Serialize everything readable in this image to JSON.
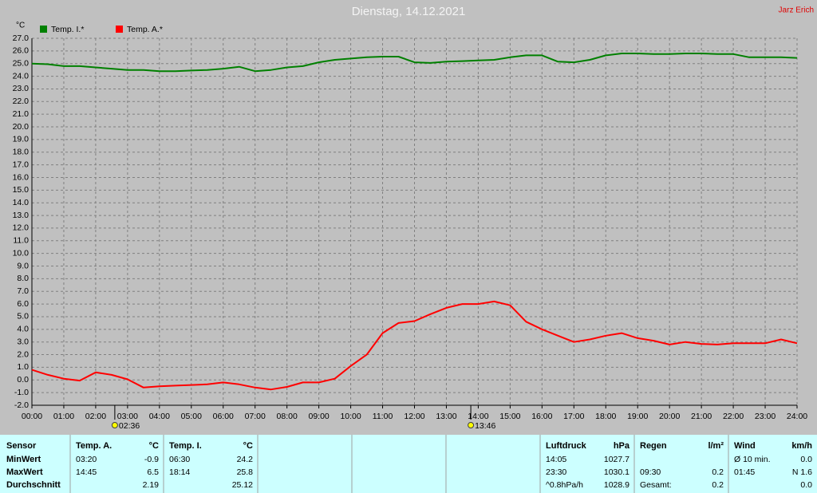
{
  "chart_data": {
    "type": "line",
    "title": "Dienstag, 14.12.2021",
    "author": "Jarz Erich",
    "y_unit": "°C",
    "x": [
      0,
      0.5,
      1,
      1.5,
      2,
      2.5,
      3,
      3.5,
      4,
      4.5,
      5,
      5.5,
      6,
      6.5,
      7,
      7.5,
      8,
      8.5,
      9,
      9.5,
      10,
      10.5,
      11,
      11.5,
      12,
      12.5,
      13,
      13.5,
      14,
      14.5,
      15,
      15.5,
      16,
      16.5,
      17,
      17.5,
      18,
      18.5,
      19,
      19.5,
      20,
      20.5,
      21,
      21.5,
      22,
      22.5,
      23,
      23.5,
      24
    ],
    "series": [
      {
        "name": "Temp. I.*",
        "color": "#008000",
        "values": [
          25.0,
          24.95,
          24.8,
          24.8,
          24.7,
          24.6,
          24.5,
          24.5,
          24.4,
          24.4,
          24.45,
          24.5,
          24.6,
          24.75,
          24.4,
          24.5,
          24.7,
          24.8,
          25.1,
          25.3,
          25.4,
          25.5,
          25.55,
          25.55,
          25.1,
          25.05,
          25.15,
          25.2,
          25.25,
          25.3,
          25.5,
          25.65,
          25.65,
          25.15,
          25.1,
          25.3,
          25.65,
          25.8,
          25.8,
          25.75,
          25.75,
          25.8,
          25.8,
          25.75,
          25.75,
          25.5,
          25.5,
          25.5,
          25.45
        ]
      },
      {
        "name": "Temp. A.*",
        "color": "#ff0000",
        "values": [
          0.8,
          0.4,
          0.1,
          -0.05,
          0.6,
          0.4,
          0.05,
          -0.6,
          -0.5,
          -0.45,
          -0.4,
          -0.35,
          -0.2,
          -0.35,
          -0.6,
          -0.75,
          -0.55,
          -0.2,
          -0.2,
          0.1,
          1.1,
          2.0,
          3.7,
          4.5,
          4.65,
          5.2,
          5.7,
          6.0,
          6.0,
          6.2,
          5.9,
          4.6,
          4.0,
          3.5,
          3.0,
          3.2,
          3.5,
          3.7,
          3.3,
          3.1,
          2.8,
          3.0,
          2.85,
          2.8,
          2.9,
          2.9,
          2.9,
          3.2,
          2.9
        ]
      }
    ],
    "xlim": [
      0,
      24
    ],
    "xticks": [
      {
        "value": 0,
        "label": "00:00"
      },
      {
        "value": 1,
        "label": "01:00"
      },
      {
        "value": 2,
        "label": "02:00"
      },
      {
        "value": 3,
        "label": "03:00"
      },
      {
        "value": 4,
        "label": "04:00"
      },
      {
        "value": 5,
        "label": "05:00"
      },
      {
        "value": 6,
        "label": "06:00"
      },
      {
        "value": 7,
        "label": "07:00"
      },
      {
        "value": 8,
        "label": "08:00"
      },
      {
        "value": 9,
        "label": "09:00"
      },
      {
        "value": 10,
        "label": "10:00"
      },
      {
        "value": 11,
        "label": "11:00"
      },
      {
        "value": 12,
        "label": "12:00"
      },
      {
        "value": 13,
        "label": "13:00"
      },
      {
        "value": 14,
        "label": "14:00"
      },
      {
        "value": 15,
        "label": "15:00"
      },
      {
        "value": 16,
        "label": "16:00"
      },
      {
        "value": 17,
        "label": "17:00"
      },
      {
        "value": 18,
        "label": "18:00"
      },
      {
        "value": 19,
        "label": "19:00"
      },
      {
        "value": 20,
        "label": "20:00"
      },
      {
        "value": 21,
        "label": "21:00"
      },
      {
        "value": 22,
        "label": "22:00"
      },
      {
        "value": 23,
        "label": "23:00"
      },
      {
        "value": 24,
        "label": "24:00"
      }
    ],
    "ylim": [
      -2,
      27
    ],
    "yticks": [
      {
        "value": 27,
        "label": "27.0"
      },
      {
        "value": 26,
        "label": "26.0"
      },
      {
        "value": 25,
        "label": "25.0"
      },
      {
        "value": 24,
        "label": "24.0"
      },
      {
        "value": 23,
        "label": "23.0"
      },
      {
        "value": 22,
        "label": "22.0"
      },
      {
        "value": 21,
        "label": "21.0"
      },
      {
        "value": 20,
        "label": "20.0"
      },
      {
        "value": 19,
        "label": "19.0"
      },
      {
        "value": 18,
        "label": "18.0"
      },
      {
        "value": 17,
        "label": "17.0"
      },
      {
        "value": 16,
        "label": "16.0"
      },
      {
        "value": 15,
        "label": "15.0"
      },
      {
        "value": 14,
        "label": "14.0"
      },
      {
        "value": 13,
        "label": "13.0"
      },
      {
        "value": 12,
        "label": "12.0"
      },
      {
        "value": 11,
        "label": "11.0"
      },
      {
        "value": 10,
        "label": "10.0"
      },
      {
        "value": 9,
        "label": "9.0"
      },
      {
        "value": 8,
        "label": "8.0"
      },
      {
        "value": 7,
        "label": "7.0"
      },
      {
        "value": 6,
        "label": "6.0"
      },
      {
        "value": 5,
        "label": "5.0"
      },
      {
        "value": 4,
        "label": "4.0"
      },
      {
        "value": 3,
        "label": "3.0"
      },
      {
        "value": 2,
        "label": "2.0"
      },
      {
        "value": 1,
        "label": "1.0"
      },
      {
        "value": 0,
        "label": "0.0"
      },
      {
        "value": -1,
        "label": "-1.0"
      },
      {
        "value": -2,
        "label": "-2.0"
      }
    ],
    "grid": true,
    "annotations": [
      "02:36",
      "13:46"
    ]
  },
  "stats_table": {
    "row_labels": [
      "Sensor",
      "MinWert",
      "MaxWert",
      "Durchschnitt"
    ],
    "groups": [
      {
        "name": "Temp. A.",
        "unit": "°C",
        "rows": [
          [
            "03:20",
            "-0.9"
          ],
          [
            "14:45",
            "6.5"
          ],
          [
            null,
            "2.19"
          ]
        ]
      },
      {
        "name": "Temp. I.",
        "unit": "°C",
        "rows": [
          [
            "06:30",
            "24.2"
          ],
          [
            "18:14",
            "25.8"
          ],
          [
            null,
            "25.12"
          ]
        ]
      },
      {
        "name": "Luftdruck",
        "unit": "hPa",
        "rows": [
          [
            "14:05",
            "1027.7"
          ],
          [
            "23:30",
            "1030.1"
          ],
          [
            "^0.8hPa/h",
            "1028.9"
          ]
        ]
      },
      {
        "name": "Regen",
        "unit": "l/m²",
        "rows": [
          [
            null,
            null
          ],
          [
            "09:30",
            "0.2"
          ],
          [
            "Gesamt:",
            "0.2"
          ]
        ]
      },
      {
        "name": "Wind",
        "unit": "km/h",
        "rows": [
          [
            "Ø 10 min.",
            "0.0"
          ],
          [
            "01:45",
            "N 1.6"
          ],
          [
            null,
            "0.0"
          ]
        ]
      }
    ]
  }
}
